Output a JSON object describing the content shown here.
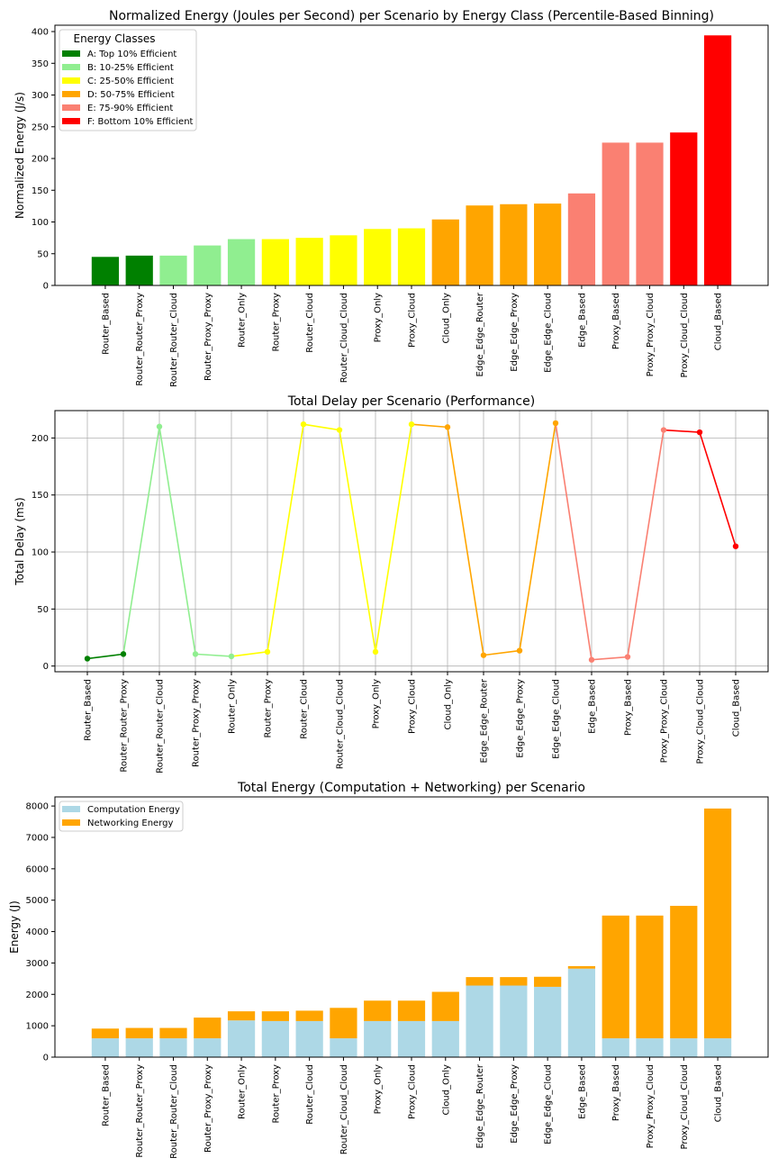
{
  "chart_data": [
    {
      "type": "bar",
      "title": "Normalized Energy (Joules per Second) per Scenario by Energy Class (Percentile-Based Binning)",
      "xlabel": "",
      "ylabel": "Normalized Energy (J/s)",
      "ylim": [
        0,
        410
      ],
      "yticks": [
        0,
        50,
        100,
        150,
        200,
        250,
        300,
        350,
        400
      ],
      "categories": [
        "Router_Based",
        "Router_Router_Proxy",
        "Router_Router_Cloud",
        "Router_Proxy_Proxy",
        "Router_Only",
        "Router_Proxy",
        "Router_Cloud",
        "Router_Cloud_Cloud",
        "Proxy_Only",
        "Proxy_Cloud",
        "Cloud_Only",
        "Edge_Edge_Router",
        "Edge_Edge_Proxy",
        "Edge_Edge_Cloud",
        "Edge_Based",
        "Proxy_Based",
        "Proxy_Proxy_Cloud",
        "Proxy_Cloud_Cloud",
        "Cloud_Based"
      ],
      "values": [
        45,
        47,
        47,
        63,
        73,
        73,
        75,
        79,
        89,
        90,
        104,
        126,
        128,
        129,
        145,
        225,
        225,
        241,
        394
      ],
      "classes": [
        "A",
        "A",
        "B",
        "B",
        "B",
        "C",
        "C",
        "C",
        "C",
        "C",
        "D",
        "D",
        "D",
        "D",
        "E",
        "E",
        "E",
        "F",
        "F"
      ],
      "grid": false,
      "legend": {
        "title": "Energy Classes",
        "position": "top-left",
        "entries": [
          {
            "key": "A",
            "label": "A: Top 10% Efficient",
            "color": "#008000"
          },
          {
            "key": "B",
            "label": "B: 10-25% Efficient",
            "color": "#90ee90"
          },
          {
            "key": "C",
            "label": "C: 25-50% Efficient",
            "color": "#ffff00"
          },
          {
            "key": "D",
            "label": "D: 50-75% Efficient",
            "color": "#ffa500"
          },
          {
            "key": "E",
            "label": "E: 75-90% Efficient",
            "color": "#fa8072"
          },
          {
            "key": "F",
            "label": "F: Bottom 10% Efficient",
            "color": "#ff0000"
          }
        ]
      }
    },
    {
      "type": "line",
      "title": "Total Delay per Scenario (Performance)",
      "xlabel": "",
      "ylabel": "Total Delay (ms)",
      "ylim": [
        -5,
        224
      ],
      "yticks": [
        0,
        50,
        100,
        150,
        200
      ],
      "categories": [
        "Router_Based",
        "Router_Router_Proxy",
        "Router_Router_Cloud",
        "Router_Proxy_Proxy",
        "Router_Only",
        "Router_Proxy",
        "Router_Cloud",
        "Router_Cloud_Cloud",
        "Proxy_Only",
        "Proxy_Cloud",
        "Cloud_Only",
        "Edge_Edge_Router",
        "Edge_Edge_Proxy",
        "Edge_Edge_Cloud",
        "Edge_Based",
        "Proxy_Based",
        "Proxy_Proxy_Cloud",
        "Proxy_Cloud_Cloud",
        "Cloud_Based"
      ],
      "values": [
        6.5,
        10.5,
        210,
        10.5,
        8.5,
        12.5,
        212,
        207,
        12.5,
        212,
        209.5,
        9.5,
        13.5,
        213,
        5.5,
        8,
        207,
        205,
        105
      ],
      "classes": [
        "A",
        "A",
        "B",
        "B",
        "B",
        "C",
        "C",
        "C",
        "C",
        "C",
        "D",
        "D",
        "D",
        "D",
        "E",
        "E",
        "E",
        "F",
        "F"
      ],
      "grid": true
    },
    {
      "type": "bar",
      "stacked": true,
      "title": "Total Energy (Computation + Networking) per Scenario",
      "xlabel": "",
      "ylabel": "Energy (J)",
      "ylim": [
        0,
        8290
      ],
      "yticks": [
        0,
        1000,
        2000,
        3000,
        4000,
        5000,
        6000,
        7000,
        8000
      ],
      "categories": [
        "Router_Based",
        "Router_Router_Proxy",
        "Router_Router_Cloud",
        "Router_Proxy_Proxy",
        "Router_Only",
        "Router_Proxy",
        "Router_Cloud",
        "Router_Cloud_Cloud",
        "Proxy_Only",
        "Proxy_Cloud",
        "Cloud_Only",
        "Edge_Edge_Router",
        "Edge_Edge_Proxy",
        "Edge_Edge_Cloud",
        "Edge_Based",
        "Proxy_Based",
        "Proxy_Proxy_Cloud",
        "Proxy_Cloud_Cloud",
        "Cloud_Based"
      ],
      "series": [
        {
          "name": "Computation Energy",
          "color": "#add8e6",
          "values": [
            600,
            600,
            600,
            600,
            1170,
            1150,
            1150,
            600,
            1150,
            1150,
            1150,
            2280,
            2280,
            2240,
            2820,
            600,
            600,
            600,
            600
          ]
        },
        {
          "name": "Networking Energy",
          "color": "#ffa500",
          "values": [
            310,
            330,
            330,
            660,
            290,
            310,
            330,
            970,
            650,
            650,
            930,
            270,
            270,
            320,
            80,
            3910,
            3910,
            4220,
            7320
          ]
        }
      ],
      "grid": false,
      "legend": {
        "position": "top-left"
      }
    }
  ],
  "class_colors": {
    "A": "#008000",
    "B": "#90ee90",
    "C": "#ffff00",
    "D": "#ffa500",
    "E": "#fa8072",
    "F": "#ff0000"
  }
}
